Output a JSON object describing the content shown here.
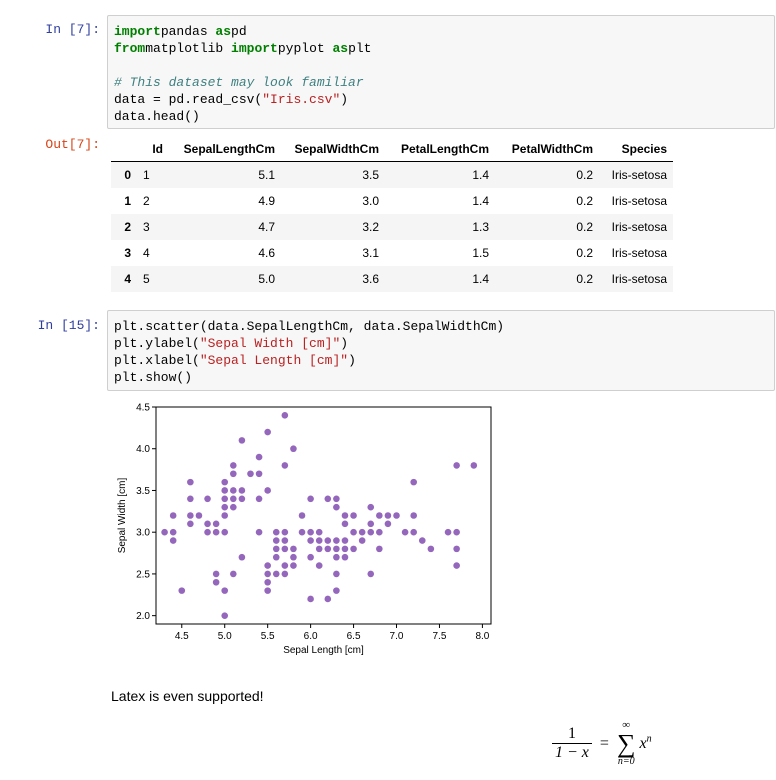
{
  "cells": {
    "c1": {
      "in_prompt": "In [7]:",
      "out_prompt": "Out[7]:",
      "lines": [
        [
          [
            "kw",
            "import"
          ],
          [
            "",
            "pandas "
          ],
          [
            "kw",
            "as"
          ],
          [
            "",
            "pd"
          ]
        ],
        [
          [
            "kw",
            "from"
          ],
          [
            "",
            "matplotlib "
          ],
          [
            "kw",
            "import"
          ],
          [
            "",
            "pyplot "
          ],
          [
            "kw",
            "as"
          ],
          [
            "",
            "plt"
          ]
        ],
        [],
        [
          [
            "cm",
            "# This dataset may look familiar"
          ]
        ],
        [
          [
            "",
            "data = pd.read_csv("
          ],
          [
            "str",
            "\"Iris.csv\""
          ],
          [
            "",
            ")"
          ]
        ],
        [
          [
            "",
            "data.head()"
          ]
        ]
      ]
    },
    "c2": {
      "in_prompt": "In [15]:",
      "lines": [
        [
          [
            "",
            "plt.scatter(data.SepalLengthCm, data.SepalWidthCm)"
          ]
        ],
        [
          [
            "",
            "plt.ylabel("
          ],
          [
            "str",
            "\"Sepal Width [cm]\""
          ],
          [
            "",
            ")"
          ]
        ],
        [
          [
            "",
            "plt.xlabel("
          ],
          [
            "str",
            "\"Sepal Length [cm]\""
          ],
          [
            "",
            ")"
          ]
        ],
        [
          [
            "",
            "plt.show()"
          ]
        ]
      ]
    }
  },
  "dataframe": {
    "columns": [
      "Id",
      "SepalLengthCm",
      "SepalWidthCm",
      "PetalLengthCm",
      "PetalWidthCm",
      "Species"
    ],
    "rows": [
      {
        "index": "0",
        "cells": [
          "1",
          "5.1",
          "3.5",
          "1.4",
          "0.2",
          "Iris-setosa"
        ]
      },
      {
        "index": "1",
        "cells": [
          "2",
          "4.9",
          "3.0",
          "1.4",
          "0.2",
          "Iris-setosa"
        ]
      },
      {
        "index": "2",
        "cells": [
          "3",
          "4.7",
          "3.2",
          "1.3",
          "0.2",
          "Iris-setosa"
        ]
      },
      {
        "index": "3",
        "cells": [
          "4",
          "4.6",
          "3.1",
          "1.5",
          "0.2",
          "Iris-setosa"
        ]
      },
      {
        "index": "4",
        "cells": [
          "5",
          "5.0",
          "3.6",
          "1.4",
          "0.2",
          "Iris-setosa"
        ]
      }
    ]
  },
  "chart_data": {
    "type": "scatter",
    "xlabel": "Sepal Length [cm]",
    "ylabel": "Sepal Width [cm]",
    "xlim": [
      4.2,
      8.1
    ],
    "ylim": [
      1.9,
      4.5
    ],
    "xticks": [
      "4.5",
      "5.0",
      "5.5",
      "6.0",
      "6.5",
      "7.0",
      "7.5",
      "8.0"
    ],
    "yticks": [
      "2.0",
      "2.5",
      "3.0",
      "3.5",
      "4.0",
      "4.5"
    ],
    "marker_color": "#9467bd",
    "points": [
      [
        4.3,
        3.0
      ],
      [
        4.4,
        2.9
      ],
      [
        4.4,
        3.0
      ],
      [
        4.4,
        3.2
      ],
      [
        4.5,
        2.3
      ],
      [
        4.6,
        3.1
      ],
      [
        4.6,
        3.2
      ],
      [
        4.6,
        3.4
      ],
      [
        4.6,
        3.6
      ],
      [
        4.7,
        3.2
      ],
      [
        4.8,
        3.0
      ],
      [
        4.8,
        3.1
      ],
      [
        4.8,
        3.4
      ],
      [
        4.9,
        2.4
      ],
      [
        4.9,
        2.5
      ],
      [
        4.9,
        3.0
      ],
      [
        4.9,
        3.1
      ],
      [
        5.0,
        2.0
      ],
      [
        5.0,
        2.3
      ],
      [
        5.0,
        3.0
      ],
      [
        5.0,
        3.2
      ],
      [
        5.0,
        3.3
      ],
      [
        5.0,
        3.4
      ],
      [
        5.0,
        3.5
      ],
      [
        5.0,
        3.6
      ],
      [
        5.1,
        2.5
      ],
      [
        5.1,
        3.3
      ],
      [
        5.1,
        3.4
      ],
      [
        5.1,
        3.5
      ],
      [
        5.1,
        3.7
      ],
      [
        5.1,
        3.8
      ],
      [
        5.2,
        2.7
      ],
      [
        5.2,
        3.4
      ],
      [
        5.2,
        3.5
      ],
      [
        5.2,
        4.1
      ],
      [
        5.3,
        3.7
      ],
      [
        5.4,
        3.0
      ],
      [
        5.4,
        3.4
      ],
      [
        5.4,
        3.7
      ],
      [
        5.4,
        3.9
      ],
      [
        5.5,
        2.3
      ],
      [
        5.5,
        2.4
      ],
      [
        5.5,
        2.5
      ],
      [
        5.5,
        2.6
      ],
      [
        5.5,
        3.5
      ],
      [
        5.5,
        4.2
      ],
      [
        5.6,
        2.5
      ],
      [
        5.6,
        2.7
      ],
      [
        5.6,
        2.8
      ],
      [
        5.6,
        2.9
      ],
      [
        5.6,
        3.0
      ],
      [
        5.7,
        2.5
      ],
      [
        5.7,
        2.6
      ],
      [
        5.7,
        2.8
      ],
      [
        5.7,
        2.9
      ],
      [
        5.7,
        3.0
      ],
      [
        5.7,
        3.8
      ],
      [
        5.7,
        4.4
      ],
      [
        5.8,
        2.6
      ],
      [
        5.8,
        2.7
      ],
      [
        5.8,
        2.8
      ],
      [
        5.8,
        4.0
      ],
      [
        5.9,
        3.0
      ],
      [
        5.9,
        3.2
      ],
      [
        6.0,
        2.2
      ],
      [
        6.0,
        2.7
      ],
      [
        6.0,
        2.9
      ],
      [
        6.0,
        3.0
      ],
      [
        6.0,
        3.4
      ],
      [
        6.1,
        2.6
      ],
      [
        6.1,
        2.8
      ],
      [
        6.1,
        2.9
      ],
      [
        6.1,
        3.0
      ],
      [
        6.2,
        2.2
      ],
      [
        6.2,
        2.8
      ],
      [
        6.2,
        2.9
      ],
      [
        6.2,
        3.4
      ],
      [
        6.3,
        2.3
      ],
      [
        6.3,
        2.5
      ],
      [
        6.3,
        2.7
      ],
      [
        6.3,
        2.8
      ],
      [
        6.3,
        2.9
      ],
      [
        6.3,
        3.3
      ],
      [
        6.3,
        3.4
      ],
      [
        6.4,
        2.7
      ],
      [
        6.4,
        2.8
      ],
      [
        6.4,
        2.9
      ],
      [
        6.4,
        3.1
      ],
      [
        6.4,
        3.2
      ],
      [
        6.5,
        2.8
      ],
      [
        6.5,
        3.0
      ],
      [
        6.5,
        3.2
      ],
      [
        6.6,
        2.9
      ],
      [
        6.6,
        3.0
      ],
      [
        6.7,
        2.5
      ],
      [
        6.7,
        3.0
      ],
      [
        6.7,
        3.1
      ],
      [
        6.7,
        3.3
      ],
      [
        6.8,
        2.8
      ],
      [
        6.8,
        3.0
      ],
      [
        6.8,
        3.2
      ],
      [
        6.9,
        3.1
      ],
      [
        6.9,
        3.2
      ],
      [
        7.0,
        3.2
      ],
      [
        7.1,
        3.0
      ],
      [
        7.2,
        3.0
      ],
      [
        7.2,
        3.2
      ],
      [
        7.2,
        3.6
      ],
      [
        7.3,
        2.9
      ],
      [
        7.4,
        2.8
      ],
      [
        7.6,
        3.0
      ],
      [
        7.7,
        2.6
      ],
      [
        7.7,
        2.8
      ],
      [
        7.7,
        3.0
      ],
      [
        7.7,
        3.8
      ],
      [
        7.9,
        3.8
      ]
    ]
  },
  "markdown": {
    "text": "Latex is even supported!"
  },
  "latex": {
    "num": "1",
    "den": "1 − x",
    "equals": "=",
    "sigma": "∑",
    "upper": "∞",
    "lower": "n=0",
    "term_base": "x",
    "term_exp": "n"
  }
}
